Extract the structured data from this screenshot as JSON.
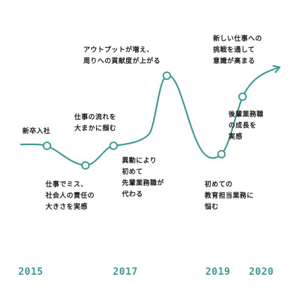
{
  "colors": {
    "line": "#3a9a94",
    "marker_fill": "#ffffff",
    "text": "#222222",
    "year": "#3a9a94"
  },
  "annotations": {
    "shinsotsu": "新卒入社",
    "shippai": "仕事でミス、\n社会人の責任の\n大きさを実感",
    "nagare": "仕事の流れを\n大まかに掴む",
    "idou": "異動により\n初めて\n先輩業務職が\n代わる",
    "outputs": "アウトプットが増え、\n周りへの貢献度が上がる",
    "hajimete": "初めての\n教育担当業務に\n悩む",
    "kouhai": "後輩業務職\nの成長を\n実感",
    "atarashii": "新しい仕事への\n挑戦を通して\n意識が高まる"
  },
  "years": [
    "2015",
    "2017",
    "2019",
    "2020"
  ]
}
